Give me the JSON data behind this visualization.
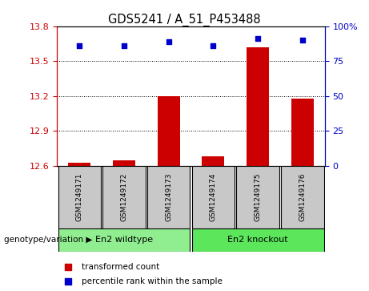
{
  "title": "GDS5241 / A_51_P453488",
  "samples": [
    "GSM1249171",
    "GSM1249172",
    "GSM1249173",
    "GSM1249174",
    "GSM1249175",
    "GSM1249176"
  ],
  "red_values": [
    12.63,
    12.65,
    13.2,
    12.68,
    13.62,
    13.18
  ],
  "blue_values": [
    86,
    86,
    89,
    86,
    91,
    90
  ],
  "ymin": 12.6,
  "ymax": 13.8,
  "y2min": 0,
  "y2max": 100,
  "yticks": [
    12.6,
    12.9,
    13.2,
    13.5,
    13.8
  ],
  "y2ticks": [
    0,
    25,
    50,
    75,
    100
  ],
  "groups": [
    {
      "label": "En2 wildtype",
      "color": "#90EE90"
    },
    {
      "label": "En2 knockout",
      "color": "#5CE65C"
    }
  ],
  "group_label": "genotype/variation",
  "legend_red": "transformed count",
  "legend_blue": "percentile rank within the sample",
  "bar_color": "#CC0000",
  "dot_color": "#0000CC",
  "bg_color": "#C8C8C8",
  "left_axis_color": "#CC0000",
  "right_axis_color": "#0000CC"
}
